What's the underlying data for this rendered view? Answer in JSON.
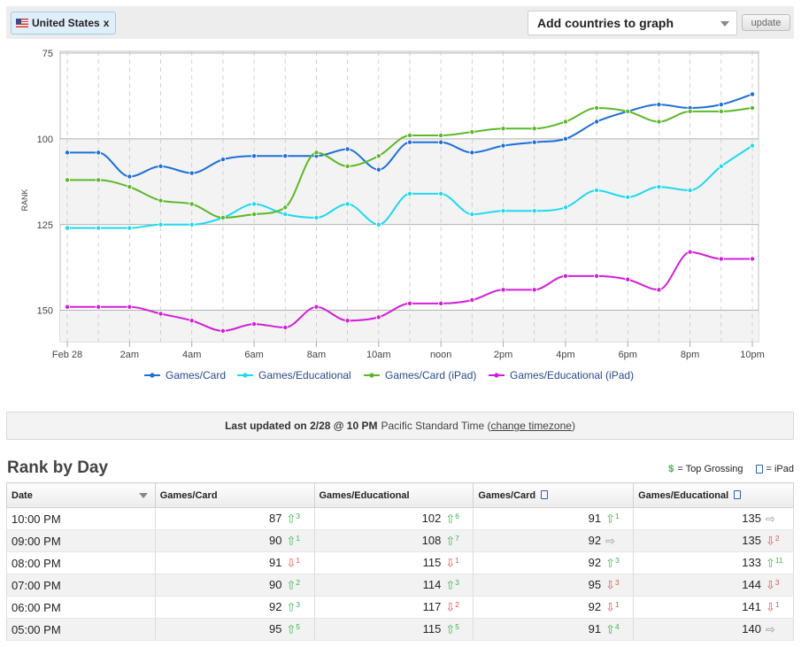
{
  "topbar": {
    "country_chip": "United States",
    "chip_close": "x",
    "add_countries": "Add countries to graph",
    "update_label": "update"
  },
  "chart_data": {
    "type": "line",
    "ylabel": "RANK",
    "y_inverted": true,
    "ylim": [
      78,
      157
    ],
    "y_ticks": [
      75,
      100,
      125,
      150
    ],
    "x_ticks": [
      "Feb 28",
      "2am",
      "4am",
      "6am",
      "8am",
      "10am",
      "noon",
      "2pm",
      "4pm",
      "6pm",
      "8pm",
      "10pm"
    ],
    "x_hours": [
      0,
      1,
      2,
      3,
      4,
      5,
      6,
      7,
      8,
      9,
      10,
      11,
      12,
      13,
      14,
      15,
      16,
      17,
      18,
      19,
      20,
      21,
      22
    ],
    "grid": true,
    "legend_position": "bottom",
    "series": [
      {
        "name": "Games/Card",
        "color": "#1e6fd9",
        "values": [
          104,
          104,
          111,
          108,
          110,
          106,
          105,
          105,
          105,
          103,
          109,
          101,
          101,
          104,
          102,
          101,
          100,
          95,
          92,
          90,
          91,
          90,
          87
        ]
      },
      {
        "name": "Games/Educational",
        "color": "#1fd9f0",
        "values": [
          126,
          126,
          126,
          125,
          125,
          123,
          119,
          122,
          123,
          119,
          125,
          116,
          116,
          122,
          121,
          121,
          120,
          115,
          117,
          114,
          115,
          108,
          102
        ]
      },
      {
        "name": "Games/Card (iPad)",
        "color": "#5cb82a",
        "values": [
          112,
          112,
          114,
          118,
          119,
          123,
          122,
          120,
          104,
          108,
          105,
          99,
          99,
          98,
          97,
          97,
          95,
          91,
          92,
          95,
          92,
          92,
          91
        ]
      },
      {
        "name": "Games/Educational (iPad)",
        "color": "#d21ed9",
        "values": [
          149,
          149,
          149,
          151,
          153,
          156,
          154,
          155,
          149,
          153,
          152,
          148,
          148,
          147,
          144,
          144,
          140,
          140,
          141,
          144,
          133,
          135,
          135
        ]
      }
    ]
  },
  "updated": {
    "prefix": "Last updated on 2/28 @ 10 PM",
    "timezone": "Pacific Standard Time (",
    "link": "change timezone",
    "suffix": ")"
  },
  "rank_by_day": {
    "title": "Rank by Day",
    "key_grossing_symbol": "$",
    "key_grossing_label": "= Top Grossing",
    "key_ipad_label": "= iPad",
    "columns": [
      "Date",
      "Games/Card",
      "Games/Educational",
      "Games/Card",
      "Games/Educational"
    ],
    "rows": [
      {
        "date": "10:00 PM",
        "cells": [
          [
            "87",
            "up",
            "3"
          ],
          [
            "102",
            "up",
            "6"
          ],
          [
            "91",
            "up",
            "1"
          ],
          [
            "135",
            "same",
            ""
          ]
        ]
      },
      {
        "date": "09:00 PM",
        "cells": [
          [
            "90",
            "up",
            "1"
          ],
          [
            "108",
            "up",
            "7"
          ],
          [
            "92",
            "same",
            ""
          ],
          [
            "135",
            "down",
            "2"
          ]
        ]
      },
      {
        "date": "08:00 PM",
        "cells": [
          [
            "91",
            "down",
            "1"
          ],
          [
            "115",
            "down",
            "1"
          ],
          [
            "92",
            "up",
            "3"
          ],
          [
            "133",
            "up",
            "11"
          ]
        ]
      },
      {
        "date": "07:00 PM",
        "cells": [
          [
            "90",
            "up",
            "2"
          ],
          [
            "114",
            "up",
            "3"
          ],
          [
            "95",
            "down",
            "3"
          ],
          [
            "144",
            "down",
            "3"
          ]
        ]
      },
      {
        "date": "06:00 PM",
        "cells": [
          [
            "92",
            "up",
            "3"
          ],
          [
            "117",
            "down",
            "2"
          ],
          [
            "92",
            "down",
            "1"
          ],
          [
            "141",
            "down",
            "1"
          ]
        ]
      },
      {
        "date": "05:00 PM",
        "cells": [
          [
            "95",
            "up",
            "5"
          ],
          [
            "115",
            "up",
            "5"
          ],
          [
            "91",
            "up",
            "4"
          ],
          [
            "140",
            "same",
            ""
          ]
        ]
      }
    ]
  }
}
